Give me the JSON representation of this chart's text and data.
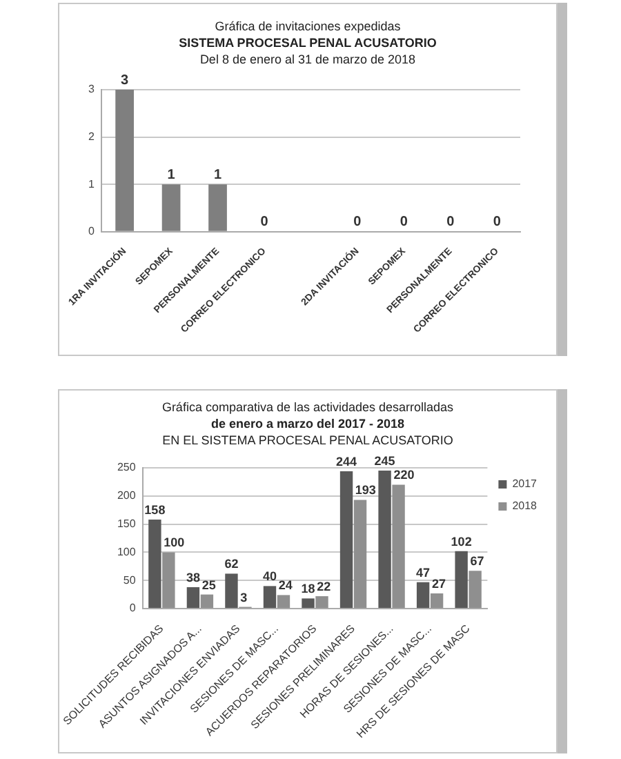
{
  "chart_data": [
    {
      "type": "bar",
      "title": "Gráfica de invitaciones expedidas\nSISTEMA PROCESAL PENAL ACUSATORIO\nDel 8 de enero al 31 de marzo de 2018",
      "categories": [
        "1RA INVITACIÓN",
        "SEPOMEX",
        "PERSONALMENTE",
        "CORREO ELECTRONICO",
        null,
        "2DA INVITACIÓN",
        "SEPOMEX",
        "PERSONALMENTE",
        "CORREO ELECTRONICO"
      ],
      "values": [
        3,
        1,
        1,
        0,
        null,
        0,
        0,
        0,
        0
      ],
      "color": "#7f7f7f",
      "ylim": [
        0,
        3
      ],
      "yticks": [
        0,
        1,
        2,
        3
      ],
      "grid": "y",
      "data_labels": true
    },
    {
      "type": "bar",
      "title": "Gráfica comparativa de las actividades desarrolladas\nde enero a marzo del 2017 - 2018\nEN EL SISTEMA PROCESAL PENAL ACUSATORIO",
      "categories": [
        "SOLICITUDES RECIBIDAS",
        "ASUNTOS ASIGNADOS A...",
        "INVITACIONES ENVIADAS",
        "SESIONES DE MASC...",
        "ACUERDOS REPARATORIOS",
        "SESIONES PRELIMINARES",
        "HORAS DE SESIONES...",
        "SESIONES DE MASC...",
        "HRS DE SESIONES DE MASC"
      ],
      "series": [
        {
          "name": "2017",
          "color": "#595959",
          "values": [
            158,
            38,
            62,
            40,
            18,
            244,
            245,
            47,
            102
          ]
        },
        {
          "name": "2018",
          "color": "#8f8f8f",
          "values": [
            100,
            25,
            3,
            24,
            22,
            193,
            220,
            27,
            67
          ]
        }
      ],
      "ylim": [
        0,
        250
      ],
      "yticks": [
        0,
        50,
        100,
        150,
        200,
        250
      ],
      "grid": "y",
      "legend": "top right",
      "data_labels": true
    }
  ]
}
